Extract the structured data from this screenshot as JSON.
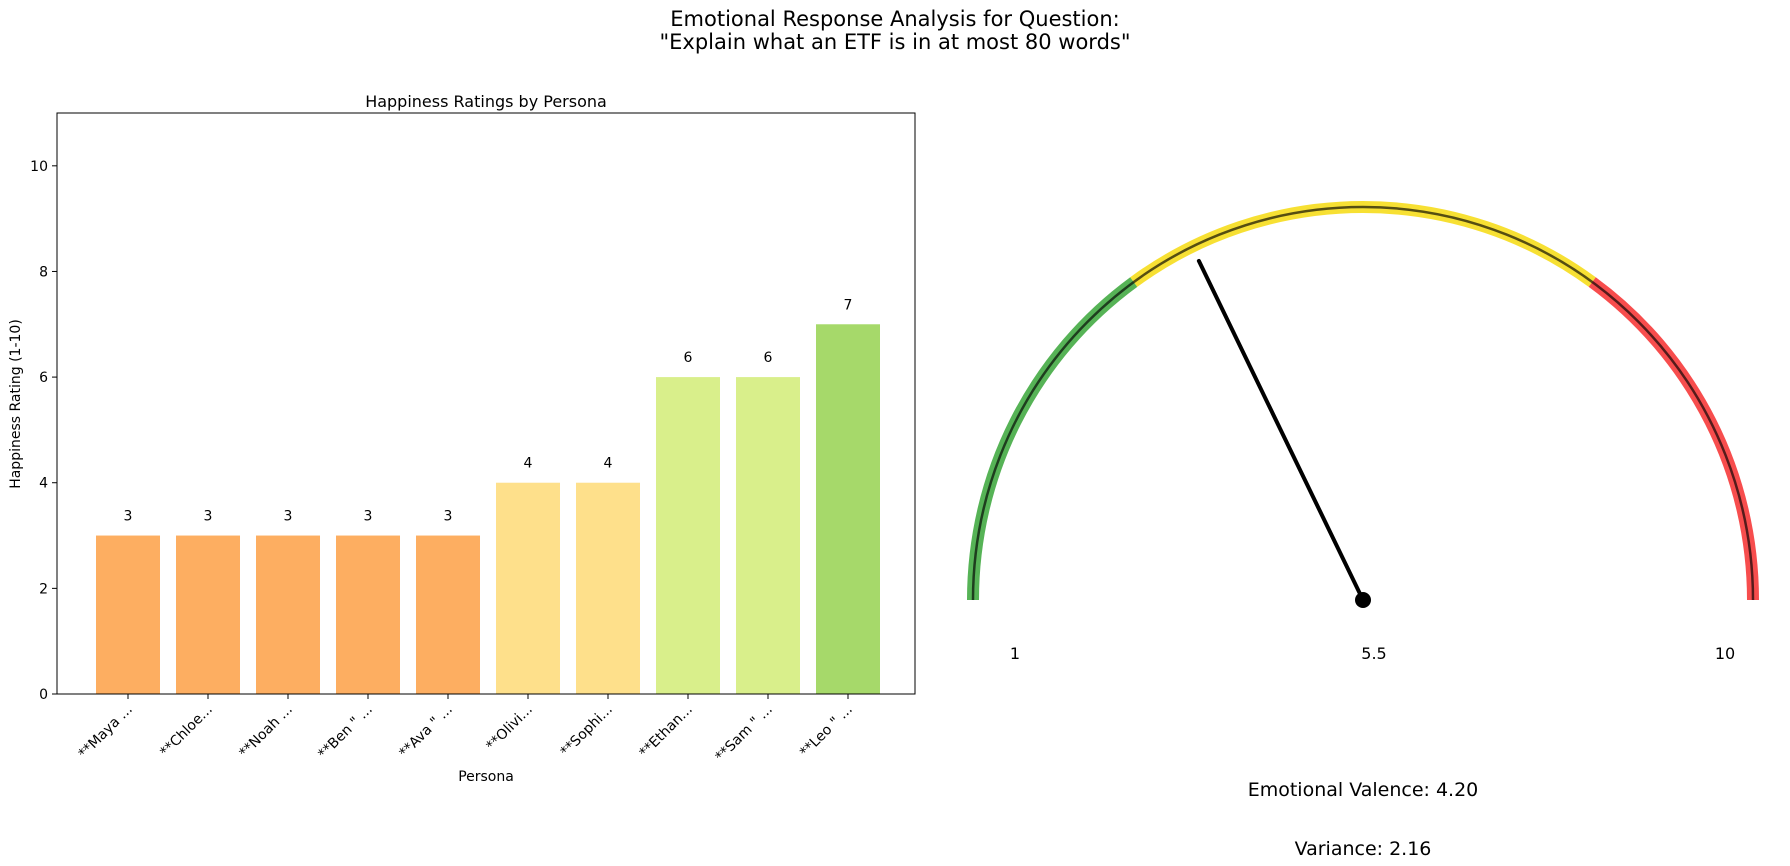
{
  "figure": {
    "title_line1": "Emotional Response Analysis for Question:",
    "title_line2": "\"Explain what an ETF is in at most 80 words\""
  },
  "chart_data": [
    {
      "type": "bar",
      "title": "Happiness Ratings by Persona",
      "xlabel": "Persona",
      "ylabel": "Happiness Rating (1-10)",
      "ylim": [
        0,
        11
      ],
      "yticks": [
        0,
        2,
        4,
        6,
        8,
        10
      ],
      "grid": false,
      "categories": [
        "**Maya ...",
        "**Chloe...",
        "**Noah ...",
        "**Ben \" ...",
        "**Ava \" ...",
        "**Olivi...",
        "**Sophi...",
        "**Ethan...",
        "**Sam \" ...",
        "**Leo \" ..."
      ],
      "values": [
        3,
        3,
        3,
        3,
        3,
        4,
        4,
        6,
        6,
        7
      ],
      "colors": [
        "#fdae61",
        "#fdae61",
        "#fdae61",
        "#fdae61",
        "#fdae61",
        "#fee08b",
        "#fee08b",
        "#d9ef8b",
        "#d9ef8b",
        "#a6d96a"
      ]
    },
    {
      "type": "gauge",
      "min": 1,
      "max": 10,
      "tick_labels": [
        "1",
        "5.5",
        "10"
      ],
      "value": 4.2,
      "bands": [
        {
          "from": 1,
          "to": 3.7,
          "color": "#2ca02c"
        },
        {
          "from": 3.7,
          "to": 7.3,
          "color": "#f5d800"
        },
        {
          "from": 7.3,
          "to": 10,
          "color": "#f52020"
        }
      ],
      "valence_label": "Emotional Valence: 4.20",
      "variance_label": "Variance: 2.16"
    }
  ]
}
